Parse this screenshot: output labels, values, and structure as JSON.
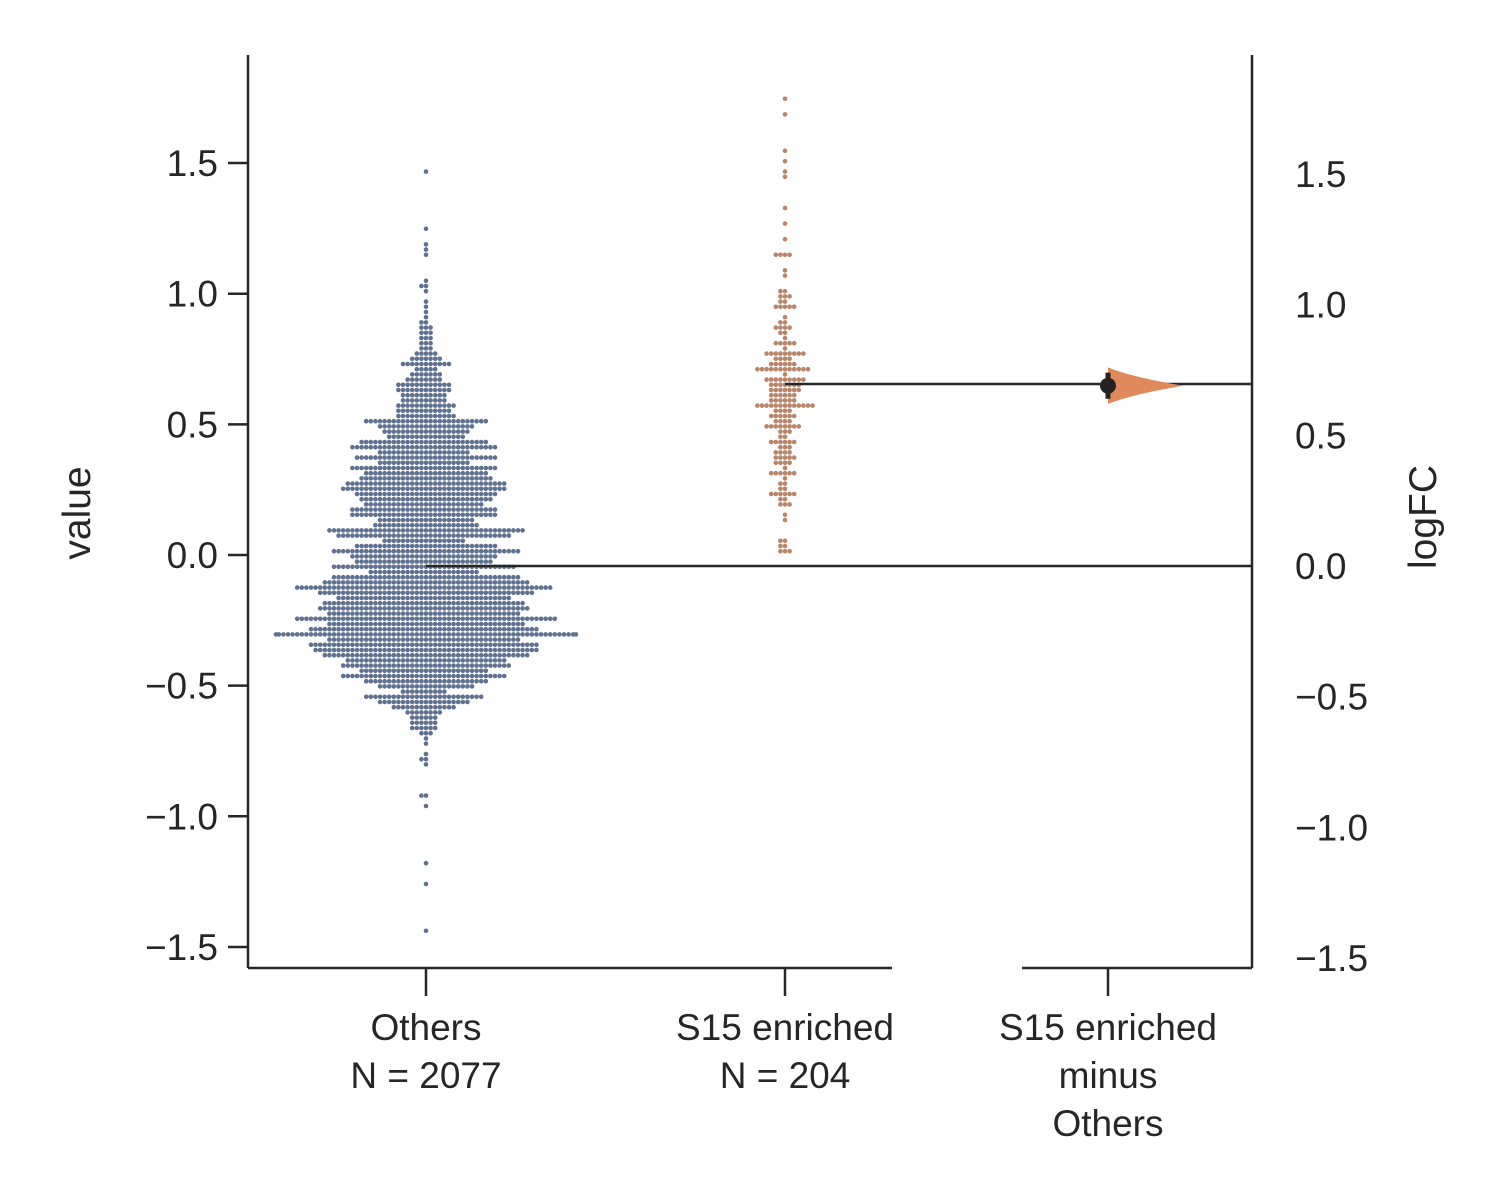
{
  "chart_data": {
    "type": "scatter",
    "subtype": "estimation-plot (swarm + mean difference)",
    "title": "",
    "ylabel": "value",
    "y2label": "logFC",
    "ylim": [
      -1.6,
      1.9
    ],
    "yticks": [
      "−1.5",
      "−1.0",
      "−0.5",
      "0.0",
      "0.5",
      "1.0",
      "1.5"
    ],
    "y2ticks": [
      "−1.5",
      "−1.0",
      "−0.5",
      "0.0",
      "0.5",
      "1.0",
      "1.5"
    ],
    "grid": false,
    "groups": [
      {
        "key": "others",
        "label_line1": "Others",
        "label_line2": "N = 2077",
        "n": 2077,
        "color": "#5f7190",
        "mean": -0.04,
        "min": -1.43,
        "max": 1.47
      },
      {
        "key": "s15",
        "label_line1": "S15 enriched",
        "label_line2": "N = 204",
        "n": 204,
        "color": "#b98467",
        "mean": 0.65,
        "min": 0.01,
        "max": 1.75
      }
    ],
    "difference": {
      "label_line1": "S15 enriched",
      "label_line2": "minus",
      "label_line3": "Others",
      "mean_difference": 0.69,
      "ci": [
        0.64,
        0.74
      ],
      "color": "#e08a5c",
      "point_color": "#222222"
    }
  }
}
